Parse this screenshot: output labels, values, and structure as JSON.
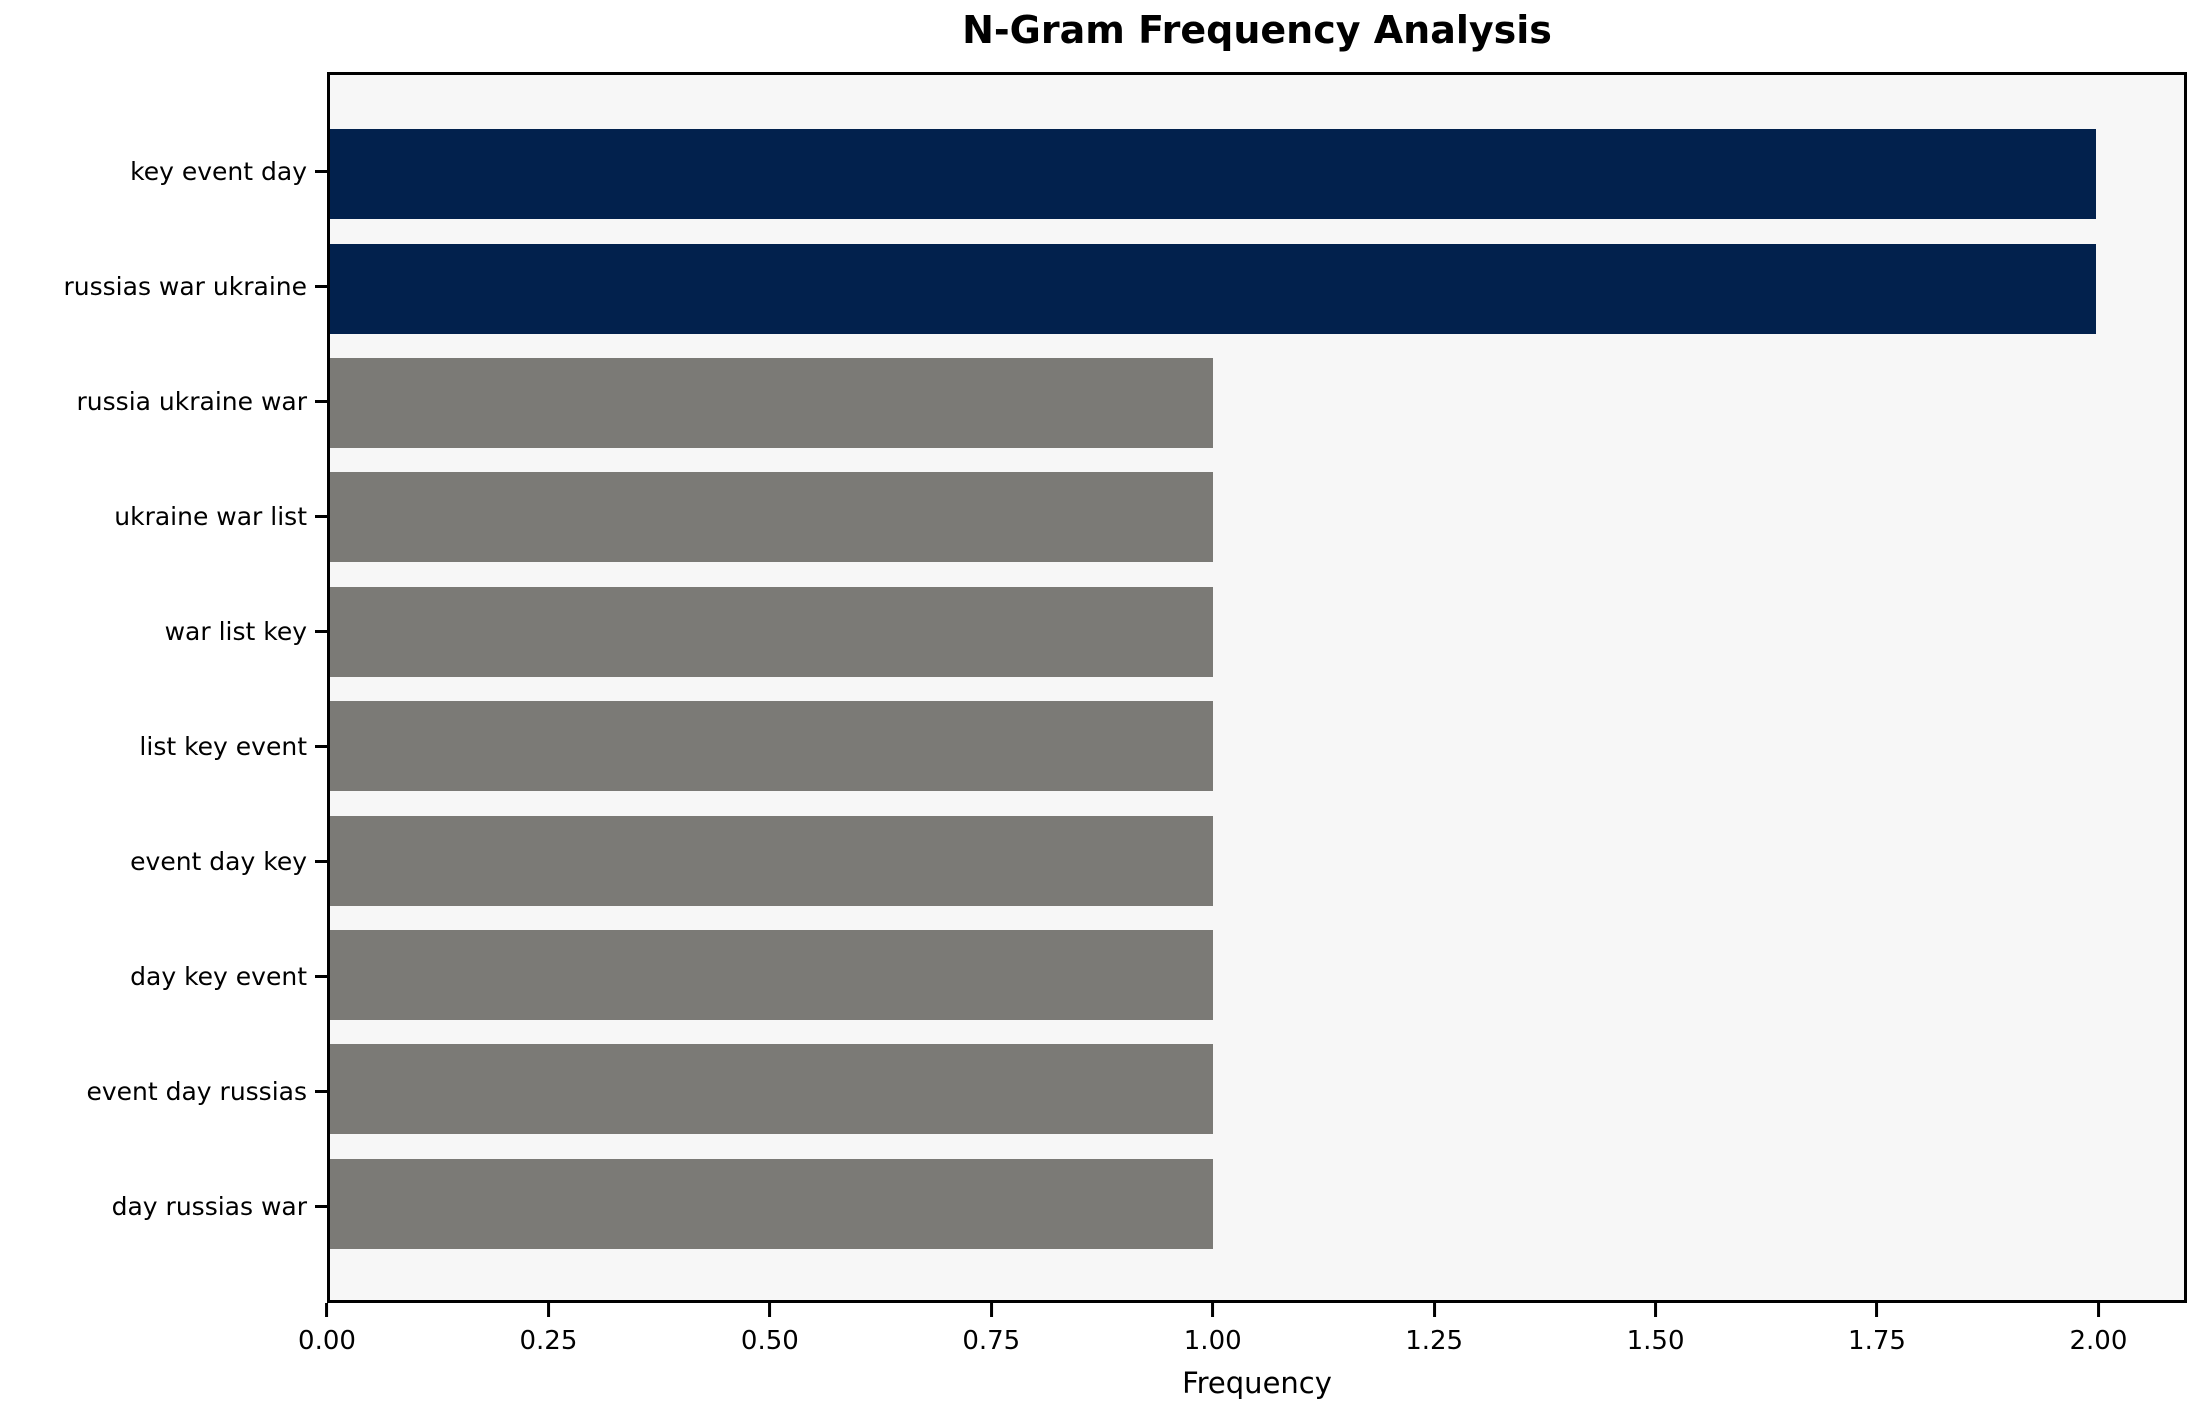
{
  "chart_data": {
    "type": "bar",
    "orientation": "horizontal",
    "title": "N-Gram Frequency Analysis",
    "xlabel": "Frequency",
    "ylabel": "",
    "categories": [
      "key event day",
      "russias war ukraine",
      "russia ukraine war",
      "ukraine war list",
      "war list key",
      "list key event",
      "event day key",
      "day key event",
      "event day russias",
      "day russias war"
    ],
    "values": [
      2,
      2,
      1,
      1,
      1,
      1,
      1,
      1,
      1,
      1
    ],
    "bar_colors": [
      "#02214d",
      "#02214d",
      "#7b7a76",
      "#7b7a76",
      "#7b7a76",
      "#7b7a76",
      "#7b7a76",
      "#7b7a76",
      "#7b7a76",
      "#7b7a76"
    ],
    "highlight_color": "#02214d",
    "default_color": "#7b7a76",
    "plot_background": "#f7f7f7",
    "figure_background": "#ffffff",
    "spine_color": "#000000",
    "xlim": [
      0,
      2.1
    ],
    "xticks": [
      "0.00",
      "0.25",
      "0.50",
      "0.75",
      "1.00",
      "1.25",
      "1.50",
      "1.75",
      "2.00"
    ],
    "xtick_values": [
      0,
      0.25,
      0.5,
      0.75,
      1.0,
      1.25,
      1.5,
      1.75,
      2.0
    ],
    "grid": false,
    "legend_position": "none"
  }
}
